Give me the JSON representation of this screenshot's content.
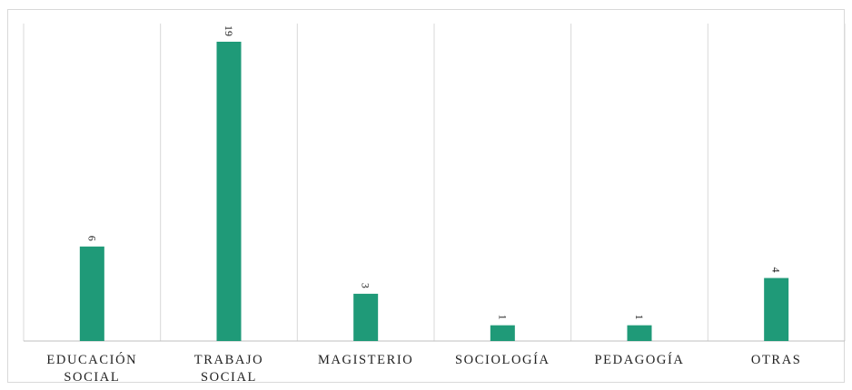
{
  "chart_data": {
    "type": "bar",
    "categories": [
      [
        "EDUCACIÓN",
        "SOCIAL"
      ],
      [
        "TRABAJO",
        "SOCIAL"
      ],
      [
        "MAGISTERIO"
      ],
      [
        "SOCIOLOGÍA"
      ],
      [
        "PEDAGOGÍA"
      ],
      [
        "OTRAS"
      ]
    ],
    "values": [
      6,
      19,
      3,
      1,
      1,
      4
    ],
    "data_labels": [
      "6",
      "19",
      "3",
      "1",
      "1",
      "4"
    ],
    "ylim": [
      0,
      19
    ],
    "grid": "vertical-category-separators",
    "legend": "none",
    "data_label_orientation": "rotated-90",
    "colors": {
      "bar": "#1f9a78",
      "grid": "#d9d9d9",
      "axis": "#bfbfbf",
      "text": "#222222"
    }
  }
}
